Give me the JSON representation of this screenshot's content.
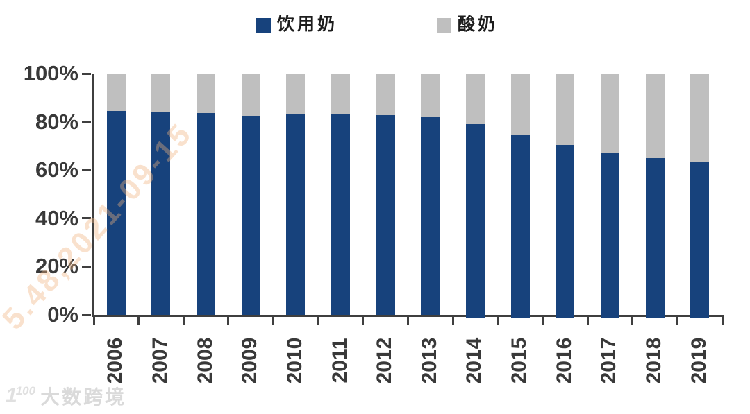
{
  "legend": {
    "items": [
      {
        "label": "饮用奶",
        "color": "#17427c"
      },
      {
        "label": "酸奶",
        "color": "#bfbfbf"
      }
    ]
  },
  "chart_data": {
    "type": "bar",
    "stacked": true,
    "percent_stacked": true,
    "title": "",
    "xlabel": "",
    "ylabel": "",
    "ylim": [
      0,
      100
    ],
    "yticks": [
      "100%",
      "80%",
      "60%",
      "40%",
      "20%",
      "0%"
    ],
    "legend_position": "top",
    "grid": false,
    "categories": [
      "2006",
      "2007",
      "2008",
      "2009",
      "2010",
      "2011",
      "2012",
      "2013",
      "2014",
      "2015",
      "2016",
      "2017",
      "2018",
      "2019"
    ],
    "series": [
      {
        "name": "饮用奶",
        "color": "#17427c",
        "values": [
          84.4,
          83.8,
          83.6,
          82.5,
          83.1,
          83.0,
          82.8,
          81.9,
          79.0,
          74.8,
          70.4,
          66.9,
          64.9,
          63.3
        ]
      },
      {
        "name": "酸奶",
        "color": "#bfbfbf",
        "values": [
          15.6,
          16.2,
          16.4,
          17.5,
          16.9,
          17.0,
          17.2,
          18.1,
          21.0,
          25.2,
          29.6,
          33.1,
          35.1,
          36.7
        ]
      }
    ]
  },
  "watermarks": {
    "diagonal_text": "5.48,2021-09-15",
    "logo_mark": "100",
    "logo_text": "大数跨境"
  },
  "colors": {
    "axis": "#3f3f3f",
    "tick_label": "#393939",
    "watermark_orange": "#f0b37e",
    "watermark_gray": "#dadada"
  }
}
